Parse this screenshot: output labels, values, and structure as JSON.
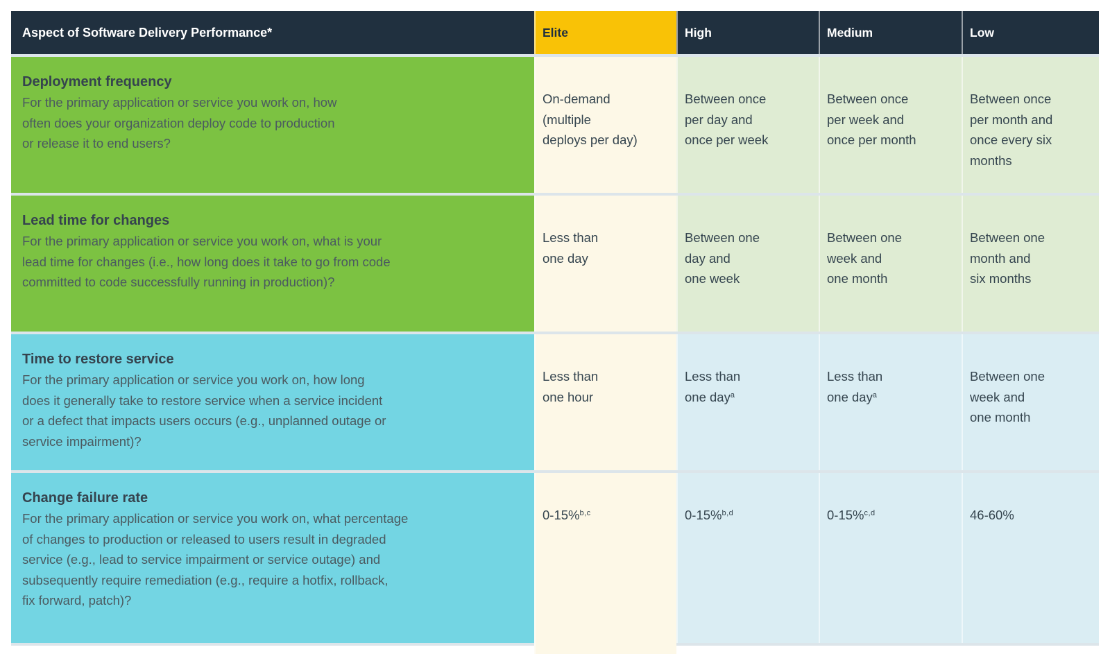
{
  "table": {
    "header": {
      "aspect": "Aspect of Software Delivery Performance*",
      "levels": [
        "Elite",
        "High",
        "Medium",
        "Low"
      ]
    },
    "rows": [
      {
        "metric": "Deployment frequency",
        "theme": "green",
        "question": "For the primary application or service you work on, how\noften does your organization deploy code to production\nor release it to end users?",
        "values": [
          {
            "text": "On-demand\n(multiple\ndeploys per day)",
            "sup": ""
          },
          {
            "text": "Between once\nper day and\nonce per week",
            "sup": ""
          },
          {
            "text": "Between once\nper week and\nonce per month",
            "sup": ""
          },
          {
            "text": "Between once\nper month and\nonce every six\nmonths",
            "sup": ""
          }
        ]
      },
      {
        "metric": "Lead time for changes",
        "theme": "green",
        "question": "For the primary application or service you work on, what is your\nlead time for changes (i.e., how long does it take to go from code\ncommitted to code successfully running in production)?",
        "values": [
          {
            "text": "Less than\none day",
            "sup": ""
          },
          {
            "text": "Between one\nday and\none week",
            "sup": ""
          },
          {
            "text": "Between one\nweek and\none month",
            "sup": ""
          },
          {
            "text": "Between one\nmonth and\nsix months",
            "sup": ""
          }
        ]
      },
      {
        "metric": "Time to restore service",
        "theme": "cyan",
        "question": "For the primary application or service you work on, how long\ndoes it generally take to restore service when a service incident\nor a defect that impacts users occurs (e.g., unplanned outage or\nservice impairment)?",
        "values": [
          {
            "text": "Less than\none hour",
            "sup": ""
          },
          {
            "text": "Less than\none day",
            "sup": "a"
          },
          {
            "text": "Less than\none day",
            "sup": "a"
          },
          {
            "text": "Between one\nweek and\none month",
            "sup": ""
          }
        ]
      },
      {
        "metric": "Change failure rate",
        "theme": "cyan",
        "question": "For the primary application or service you work on, what percentage\nof changes to production or released to users result in degraded\nservice (e.g., lead to service impairment or service outage) and\nsubsequently require remediation (e.g., require a hotfix, rollback,\nfix forward, patch)?",
        "values": [
          {
            "text": "0-15%",
            "sup": "b,c"
          },
          {
            "text": "0-15%",
            "sup": "b,d"
          },
          {
            "text": "0-15%",
            "sup": "c,d"
          },
          {
            "text": "46-60%",
            "sup": ""
          }
        ]
      }
    ]
  },
  "colors": {
    "navy": "#20303f",
    "yellow": "#f9c206",
    "green": "#7cc242",
    "cyan": "#73d5e3",
    "cream": "#fdf8e7",
    "greenlight": "#dfecd3",
    "cyanlight": "#daedf3",
    "sep": "#dce5ea",
    "vsep": "rgba(255,255,255,0.55)",
    "titletext": "#35434e",
    "bodytext": "#4b5a60",
    "valuetext": "#35454f"
  }
}
